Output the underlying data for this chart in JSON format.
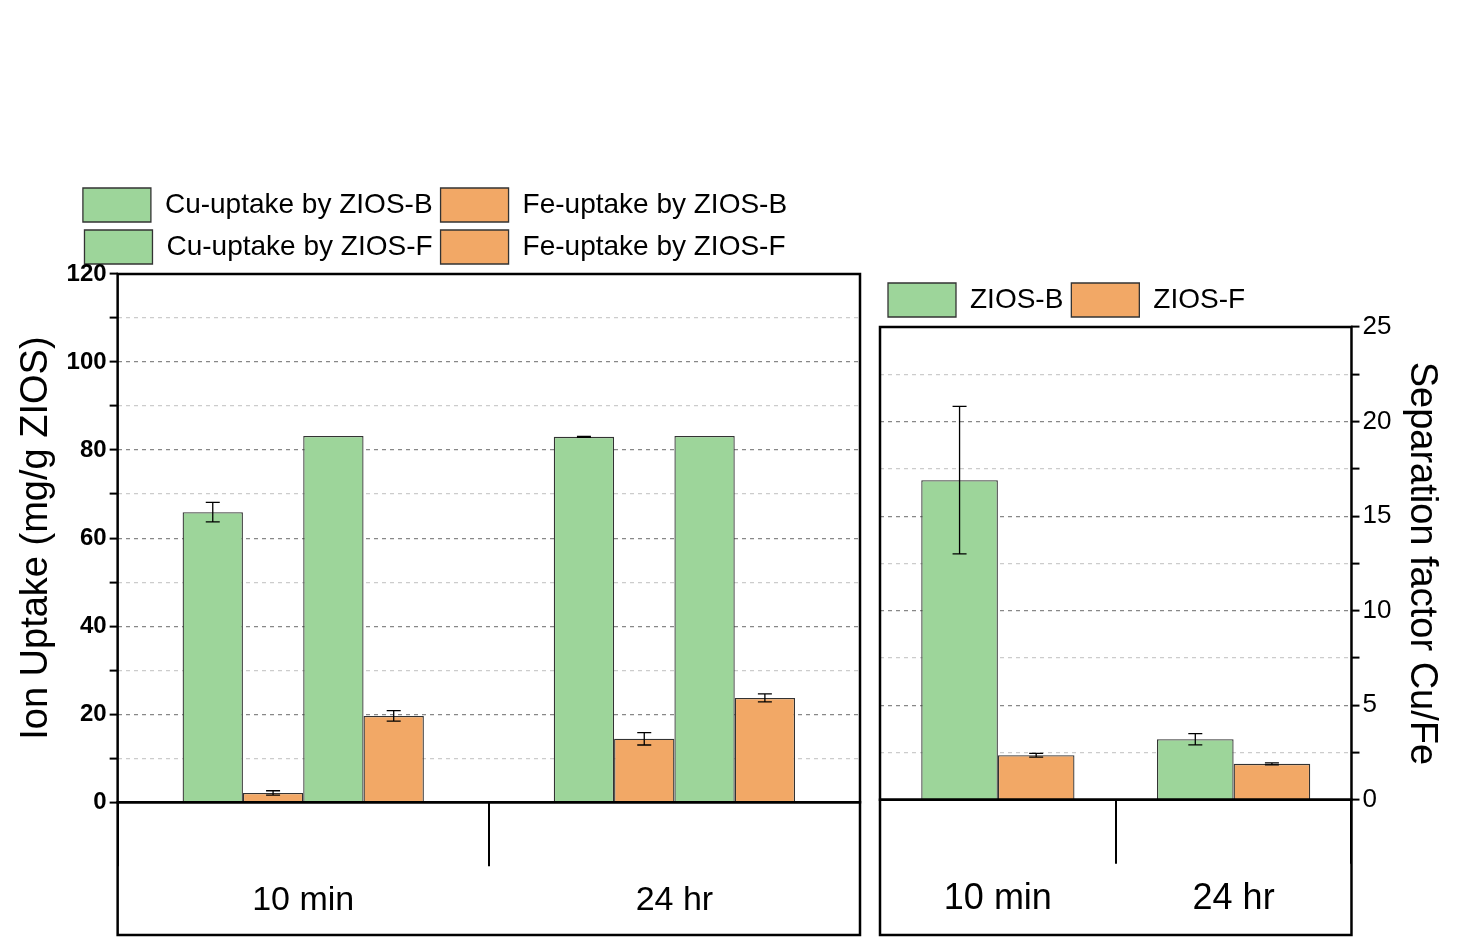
{
  "chart_data": [
    {
      "type": "bar",
      "ylabel": "Ion Uptake (mg/g ZIOS)",
      "categories": [
        "10 min",
        "24 hr"
      ],
      "series": [
        {
          "name": "Cu-uptake by ZIOS-B",
          "color": "#9dd59a",
          "values": [
            65.9,
            83.0
          ],
          "errors": [
            2.2,
            0.1
          ]
        },
        {
          "name": "Fe-uptake by ZIOS-B",
          "color": "#f2a866",
          "values": [
            2.1,
            14.4
          ],
          "errors": [
            0.5,
            1.4
          ]
        },
        {
          "name": "Cu-uptake by ZIOS-F",
          "color": "#9dd59a",
          "values": [
            83.2,
            83.2
          ],
          "errors": [
            null,
            null
          ]
        },
        {
          "name": "Fe-uptake by ZIOS-F",
          "color": "#f2a866",
          "values": [
            19.6,
            23.7
          ],
          "errors": [
            1.2,
            0.9
          ]
        }
      ],
      "ylim": [
        0,
        120
      ],
      "yticks": [
        0,
        {
          "value": 10,
          "label": null
        },
        20,
        {
          "value": 30,
          "label": null
        },
        40,
        {
          "value": 50,
          "label": null
        },
        60,
        {
          "value": 70,
          "label": null
        },
        80,
        {
          "value": 90,
          "label": null
        },
        100,
        {
          "value": 110,
          "label": null
        },
        120
      ],
      "grid": "y",
      "legend": "top"
    },
    {
      "type": "bar",
      "ylabel": "Separation factor Cu/Fe",
      "categories": [
        "10 min",
        "24 hr"
      ],
      "series": [
        {
          "name": "ZIOS-B",
          "color": "#9dd59a",
          "values": [
            16.9,
            3.2
          ],
          "errors": [
            3.9,
            0.3
          ]
        },
        {
          "name": "ZIOS-F",
          "color": "#f2a866",
          "values": [
            2.36,
            1.9
          ],
          "errors": [
            0.1,
            0.05
          ]
        }
      ],
      "ylim": [
        0,
        25
      ],
      "yticks": [
        0,
        {
          "value": 2.5,
          "label": null
        },
        5,
        {
          "value": 7.5,
          "label": null
        },
        10,
        {
          "value": 12.5,
          "label": null
        },
        15,
        {
          "value": 17.5,
          "label": null
        },
        20,
        {
          "value": 22.5,
          "label": null
        },
        25
      ],
      "grid": "y",
      "legend": "top left"
    }
  ]
}
